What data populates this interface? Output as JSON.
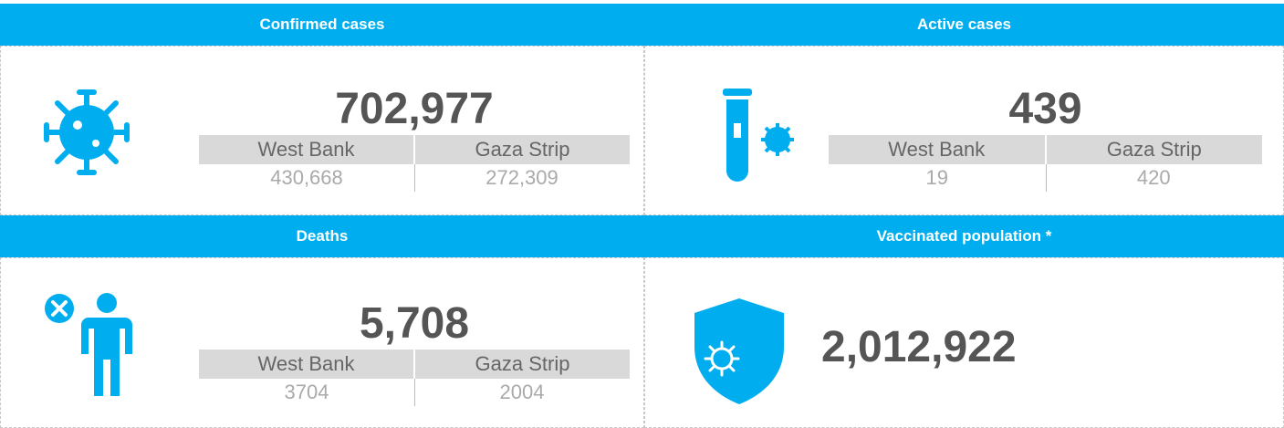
{
  "panels": [
    {
      "title": "Confirmed cases",
      "total": "702,977",
      "breakdown": {
        "headers": [
          "West Bank",
          "Gaza Strip"
        ],
        "values": [
          "430,668",
          "272,309"
        ]
      }
    },
    {
      "title": "Active cases",
      "total": "439",
      "breakdown": {
        "headers": [
          "West Bank",
          "Gaza Strip"
        ],
        "values": [
          "19",
          "420"
        ]
      }
    },
    {
      "title": "Deaths",
      "total": "5,708",
      "breakdown": {
        "headers": [
          "West Bank",
          "Gaza Strip"
        ],
        "values": [
          "3704",
          "2004"
        ]
      }
    },
    {
      "title": "Vaccinated population *",
      "total": "2,012,922"
    }
  ]
}
